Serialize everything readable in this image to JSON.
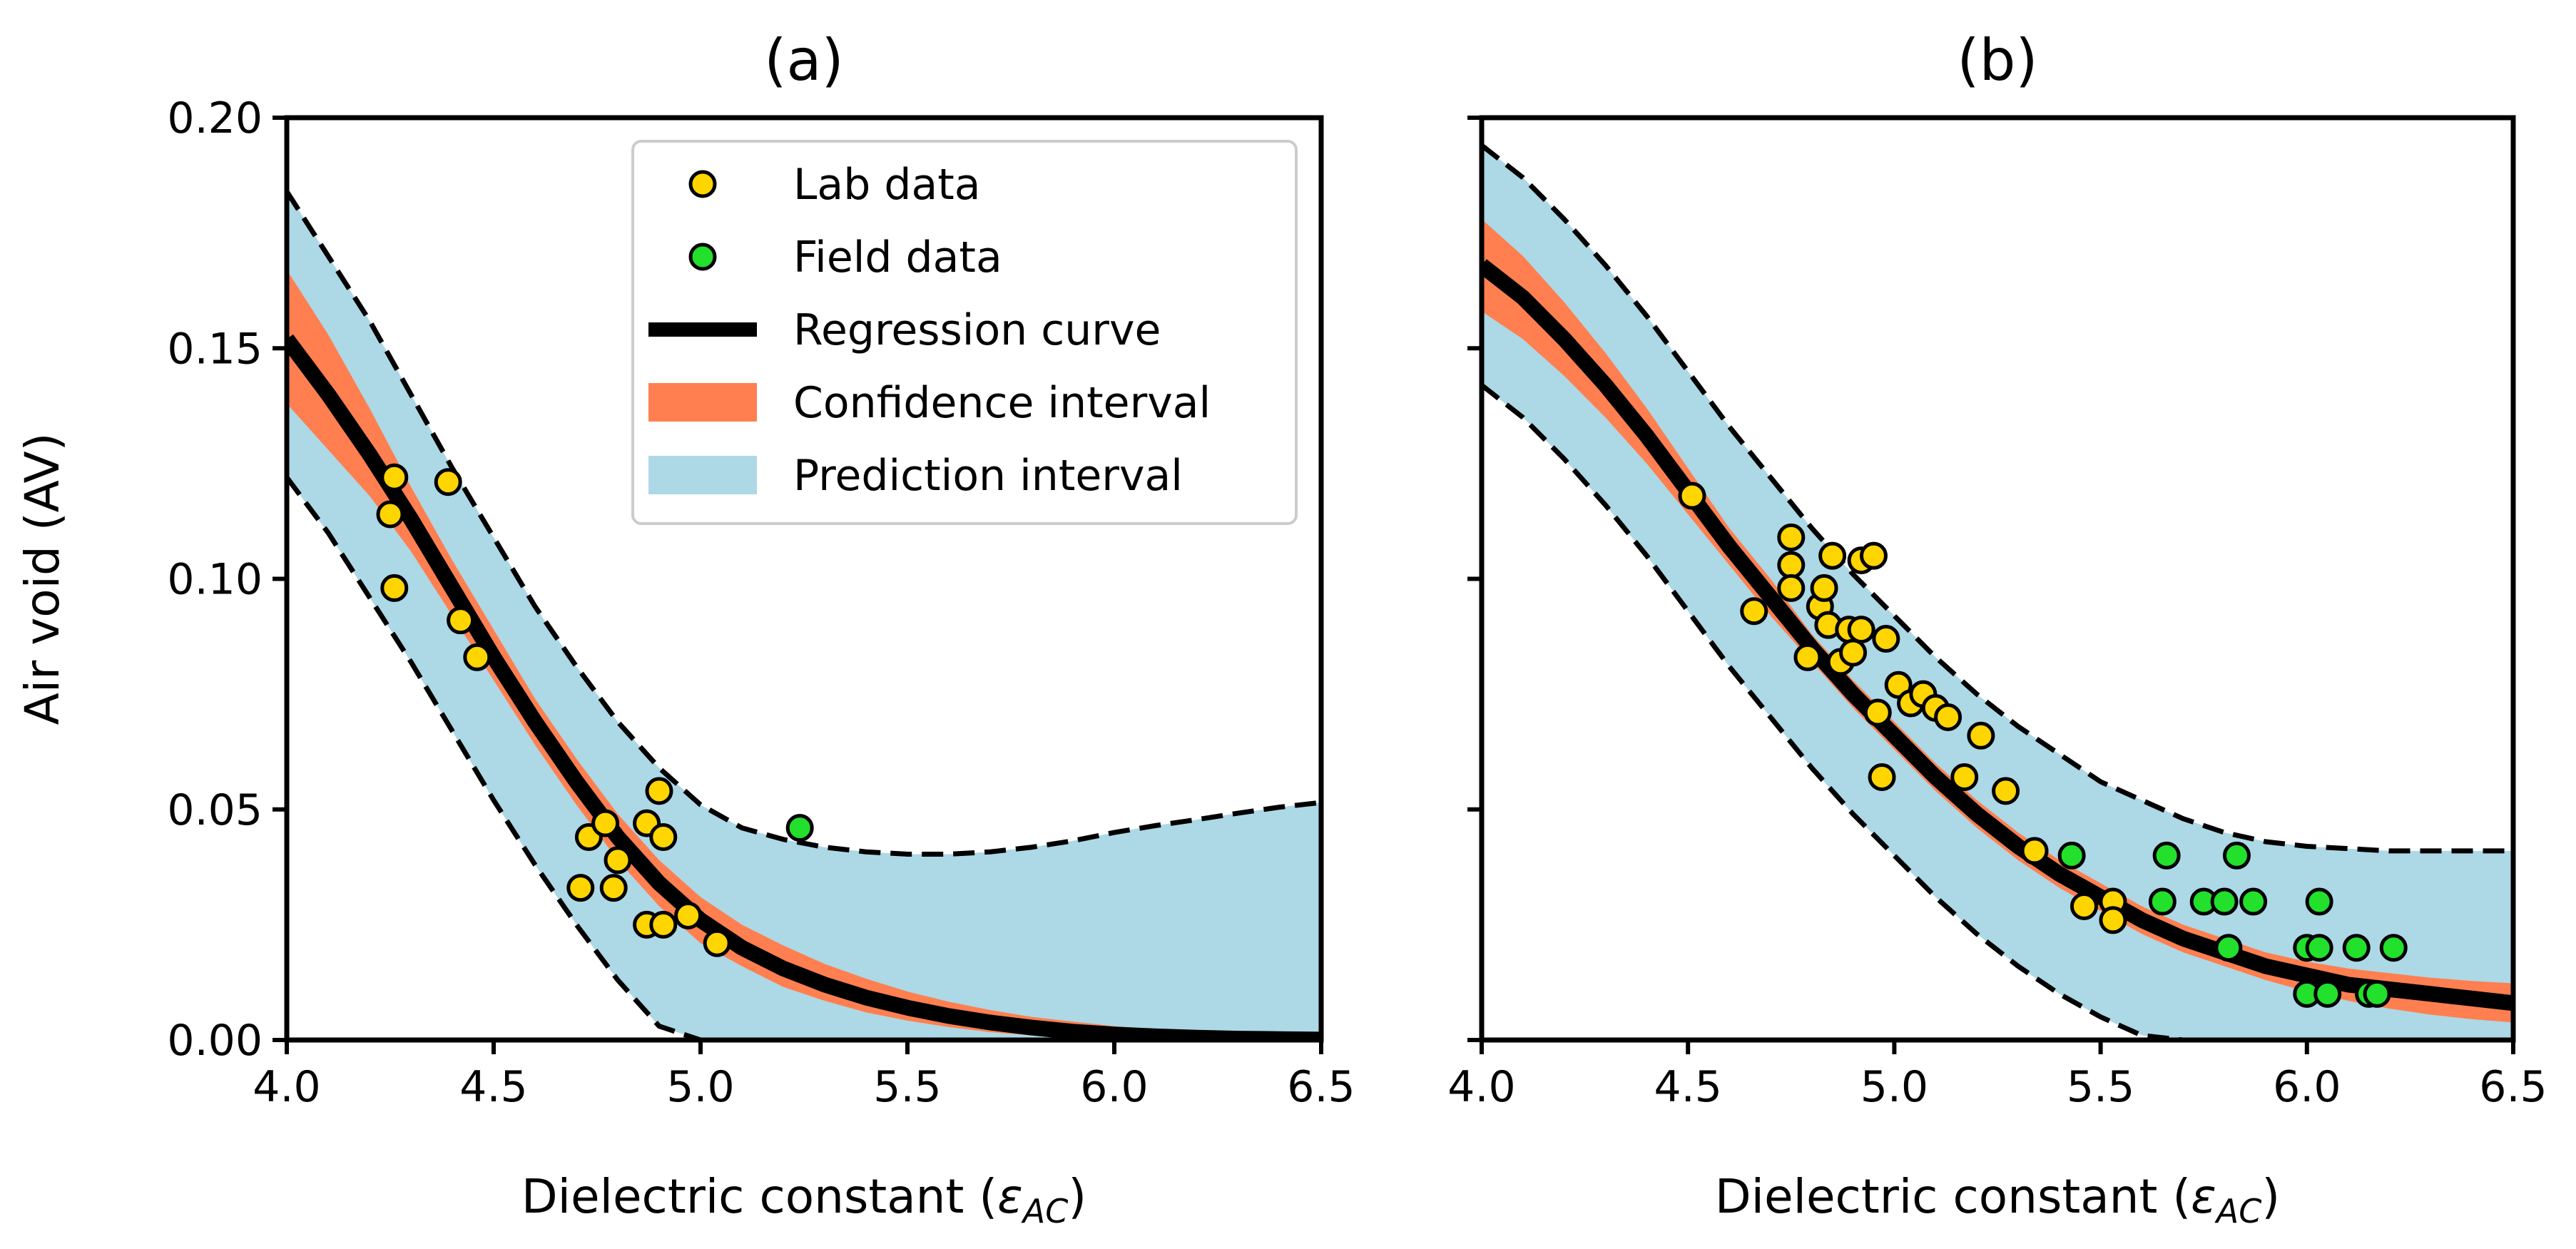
{
  "chart_data": [
    {
      "type": "scatter",
      "panel": "a",
      "title": "(a)",
      "xlabel": "Dielectric constant (",
      "xlabel_symbol": "ε",
      "xlabel_subscript": "AC",
      "xlabel_close": ")",
      "ylabel": "Air void (AV)",
      "xlim": [
        4.0,
        6.5
      ],
      "ylim": [
        0.0,
        0.2
      ],
      "xticks": [
        "4.0",
        "4.5",
        "5.0",
        "5.5",
        "6.0",
        "6.5"
      ],
      "yticks": [
        "0.00",
        "0.05",
        "0.10",
        "0.15",
        "0.20"
      ],
      "show_ytick_labels": true,
      "legend_position": "top-right",
      "series": [
        {
          "name": "Lab data",
          "kind": "points",
          "color": "#FFD500",
          "points": [
            [
              4.26,
              0.122
            ],
            [
              4.25,
              0.114
            ],
            [
              4.26,
              0.098
            ],
            [
              4.39,
              0.121
            ],
            [
              4.42,
              0.091
            ],
            [
              4.46,
              0.083
            ],
            [
              4.71,
              0.033
            ],
            [
              4.73,
              0.044
            ],
            [
              4.77,
              0.047
            ],
            [
              4.79,
              0.033
            ],
            [
              4.8,
              0.039
            ],
            [
              4.87,
              0.047
            ],
            [
              4.87,
              0.025
            ],
            [
              4.9,
              0.054
            ],
            [
              4.91,
              0.044
            ],
            [
              4.91,
              0.025
            ],
            [
              4.97,
              0.027
            ],
            [
              5.04,
              0.021
            ]
          ]
        },
        {
          "name": "Field data",
          "kind": "points",
          "color": "#22E02B",
          "points": [
            [
              5.24,
              0.046
            ]
          ]
        },
        {
          "name": "Regression curve",
          "kind": "line",
          "color": "#000000",
          "x": [
            4.0,
            4.1,
            4.2,
            4.3,
            4.4,
            4.5,
            4.6,
            4.7,
            4.8,
            4.9,
            5.0,
            5.1,
            5.2,
            5.3,
            5.4,
            5.5,
            5.6,
            5.7,
            5.8,
            5.9,
            6.0,
            6.1,
            6.2,
            6.3,
            6.4,
            6.5
          ],
          "y": [
            0.152,
            0.14,
            0.127,
            0.113,
            0.098,
            0.083,
            0.069,
            0.056,
            0.044,
            0.034,
            0.026,
            0.02,
            0.0155,
            0.012,
            0.0092,
            0.007,
            0.0052,
            0.0038,
            0.0027,
            0.0018,
            0.0012,
            0.0008,
            0.0005,
            0.0003,
            0.0002,
            0.0001
          ]
        },
        {
          "name": "Confidence interval",
          "kind": "band",
          "color": "#FF7F50",
          "x": [
            4.0,
            4.1,
            4.2,
            4.3,
            4.4,
            4.5,
            4.6,
            4.7,
            4.8,
            4.9,
            5.0,
            5.1,
            5.2,
            5.3,
            5.4,
            5.5,
            5.6,
            5.7,
            5.8,
            5.9,
            6.0,
            6.1,
            6.2,
            6.3,
            6.4,
            6.5
          ],
          "lower": [
            0.138,
            0.128,
            0.118,
            0.106,
            0.092,
            0.078,
            0.064,
            0.051,
            0.039,
            0.029,
            0.021,
            0.016,
            0.0115,
            0.0085,
            0.006,
            0.0042,
            0.0028,
            0.0017,
            0.001,
            0.0005,
            0.0002,
            0.0001,
            0.0,
            0.0,
            0.0,
            0.0
          ],
          "upper": [
            0.167,
            0.153,
            0.137,
            0.12,
            0.104,
            0.089,
            0.074,
            0.061,
            0.049,
            0.039,
            0.031,
            0.025,
            0.0205,
            0.0165,
            0.0133,
            0.0105,
            0.0083,
            0.0065,
            0.005,
            0.004,
            0.003,
            0.0023,
            0.0018,
            0.0014,
            0.0011,
            0.0009
          ]
        },
        {
          "name": "Prediction interval",
          "kind": "band",
          "color": "#ADD8E6",
          "x": [
            4.0,
            4.1,
            4.2,
            4.3,
            4.4,
            4.5,
            4.6,
            4.7,
            4.8,
            4.9,
            5.0,
            5.1,
            5.2,
            5.3,
            5.4,
            5.5,
            5.6,
            5.7,
            5.8,
            5.9,
            6.0,
            6.1,
            6.2,
            6.3,
            6.4,
            6.5
          ],
          "lower": [
            0.122,
            0.11,
            0.096,
            0.082,
            0.067,
            0.052,
            0.038,
            0.025,
            0.013,
            0.003,
            0.0,
            0.0,
            0.0,
            0.0,
            0.0,
            0.0,
            0.0,
            0.0,
            0.0,
            0.0,
            0.0,
            0.0,
            0.0,
            0.0,
            0.0,
            0.0
          ],
          "upper": [
            0.184,
            0.17,
            0.156,
            0.14,
            0.124,
            0.109,
            0.094,
            0.081,
            0.069,
            0.059,
            0.051,
            0.046,
            0.0435,
            0.0418,
            0.0408,
            0.0403,
            0.0403,
            0.0408,
            0.0418,
            0.0432,
            0.045,
            0.0465,
            0.0478,
            0.0492,
            0.0505,
            0.0515
          ]
        }
      ]
    },
    {
      "type": "scatter",
      "panel": "b",
      "title": "(b)",
      "xlabel": "Dielectric constant (",
      "xlabel_symbol": "ε",
      "xlabel_subscript": "AC",
      "xlabel_close": ")",
      "ylabel": "",
      "xlim": [
        4.0,
        6.5
      ],
      "ylim": [
        0.0,
        0.2
      ],
      "xticks": [
        "4.0",
        "4.5",
        "5.0",
        "5.5",
        "6.0",
        "6.5"
      ],
      "yticks": [
        "0.00",
        "0.05",
        "0.10",
        "0.15",
        "0.20"
      ],
      "show_ytick_labels": false,
      "legend_position": "none",
      "series": [
        {
          "name": "Lab data",
          "kind": "points",
          "color": "#FFD500",
          "points": [
            [
              4.51,
              0.118
            ],
            [
              4.66,
              0.093
            ],
            [
              4.75,
              0.109
            ],
            [
              4.75,
              0.103
            ],
            [
              4.75,
              0.098
            ],
            [
              4.79,
              0.083
            ],
            [
              4.82,
              0.094
            ],
            [
              4.83,
              0.098
            ],
            [
              4.84,
              0.09
            ],
            [
              4.85,
              0.105
            ],
            [
              4.87,
              0.082
            ],
            [
              4.89,
              0.089
            ],
            [
              4.9,
              0.084
            ],
            [
              4.92,
              0.104
            ],
            [
              4.92,
              0.089
            ],
            [
              4.95,
              0.105
            ],
            [
              4.96,
              0.071
            ],
            [
              4.97,
              0.057
            ],
            [
              4.98,
              0.087
            ],
            [
              5.01,
              0.077
            ],
            [
              5.04,
              0.073
            ],
            [
              5.07,
              0.075
            ],
            [
              5.1,
              0.072
            ],
            [
              5.13,
              0.07
            ],
            [
              5.17,
              0.057
            ],
            [
              5.21,
              0.066
            ],
            [
              5.27,
              0.054
            ],
            [
              5.34,
              0.041
            ],
            [
              5.46,
              0.029
            ],
            [
              5.53,
              0.03
            ],
            [
              5.53,
              0.026
            ]
          ]
        },
        {
          "name": "Field data",
          "kind": "points",
          "color": "#22E02B",
          "points": [
            [
              5.43,
              0.04
            ],
            [
              5.65,
              0.03
            ],
            [
              5.66,
              0.04
            ],
            [
              5.75,
              0.03
            ],
            [
              5.8,
              0.03
            ],
            [
              5.81,
              0.02
            ],
            [
              5.83,
              0.04
            ],
            [
              5.87,
              0.03
            ],
            [
              6.0,
              0.02
            ],
            [
              6.0,
              0.01
            ],
            [
              6.03,
              0.03
            ],
            [
              6.03,
              0.02
            ],
            [
              6.05,
              0.01
            ],
            [
              6.12,
              0.02
            ],
            [
              6.15,
              0.01
            ],
            [
              6.17,
              0.01
            ],
            [
              6.21,
              0.02
            ]
          ]
        },
        {
          "name": "Regression curve",
          "kind": "line",
          "color": "#000000",
          "x": [
            4.0,
            4.1,
            4.2,
            4.3,
            4.4,
            4.5,
            4.6,
            4.7,
            4.8,
            4.9,
            5.0,
            5.1,
            5.2,
            5.3,
            5.4,
            5.5,
            5.6,
            5.7,
            5.8,
            5.9,
            6.0,
            6.1,
            6.2,
            6.3,
            6.4,
            6.5
          ],
          "y": [
            0.168,
            0.161,
            0.152,
            0.142,
            0.131,
            0.119,
            0.107,
            0.096,
            0.085,
            0.075,
            0.066,
            0.057,
            0.049,
            0.042,
            0.036,
            0.031,
            0.026,
            0.022,
            0.019,
            0.016,
            0.014,
            0.012,
            0.011,
            0.01,
            0.009,
            0.008
          ]
        },
        {
          "name": "Confidence interval",
          "kind": "band",
          "color": "#FF7F50",
          "x": [
            4.0,
            4.1,
            4.2,
            4.3,
            4.4,
            4.5,
            4.6,
            4.7,
            4.8,
            4.9,
            5.0,
            5.1,
            5.2,
            5.3,
            5.4,
            5.5,
            5.6,
            5.7,
            5.8,
            5.9,
            6.0,
            6.1,
            6.2,
            6.3,
            6.4,
            6.5
          ],
          "lower": [
            0.158,
            0.152,
            0.144,
            0.135,
            0.125,
            0.114,
            0.103,
            0.092,
            0.082,
            0.072,
            0.063,
            0.054,
            0.046,
            0.039,
            0.033,
            0.028,
            0.023,
            0.019,
            0.016,
            0.013,
            0.0105,
            0.0085,
            0.0068,
            0.0055,
            0.0045,
            0.0038
          ],
          "upper": [
            0.178,
            0.17,
            0.16,
            0.149,
            0.137,
            0.124,
            0.111,
            0.1,
            0.088,
            0.078,
            0.069,
            0.06,
            0.052,
            0.045,
            0.039,
            0.034,
            0.029,
            0.025,
            0.022,
            0.019,
            0.017,
            0.0155,
            0.0145,
            0.0135,
            0.0128,
            0.0123
          ]
        },
        {
          "name": "Prediction interval",
          "kind": "band",
          "color": "#ADD8E6",
          "x": [
            4.0,
            4.1,
            4.2,
            4.3,
            4.4,
            4.5,
            4.6,
            4.7,
            4.8,
            4.9,
            5.0,
            5.1,
            5.2,
            5.3,
            5.4,
            5.5,
            5.6,
            5.7,
            5.8,
            5.9,
            6.0,
            6.1,
            6.2,
            6.3,
            6.4,
            6.5
          ],
          "lower": [
            0.142,
            0.135,
            0.126,
            0.116,
            0.105,
            0.093,
            0.081,
            0.07,
            0.059,
            0.049,
            0.04,
            0.031,
            0.023,
            0.016,
            0.01,
            0.005,
            0.001,
            0.0,
            0.0,
            0.0,
            0.0,
            0.0,
            0.0,
            0.0,
            0.0,
            0.0
          ],
          "upper": [
            0.194,
            0.187,
            0.178,
            0.168,
            0.157,
            0.145,
            0.133,
            0.122,
            0.111,
            0.101,
            0.092,
            0.083,
            0.075,
            0.068,
            0.062,
            0.056,
            0.052,
            0.048,
            0.045,
            0.043,
            0.042,
            0.0415,
            0.041,
            0.041,
            0.041,
            0.041
          ]
        }
      ]
    }
  ],
  "legend": {
    "items": [
      {
        "label": "Lab data",
        "kind": "marker",
        "color": "#FFD500"
      },
      {
        "label": "Field data",
        "kind": "marker",
        "color": "#22E02B"
      },
      {
        "label": "Regression curve",
        "kind": "line",
        "color": "#000000"
      },
      {
        "label": "Confidence interval",
        "kind": "patch",
        "color": "#FF7F50"
      },
      {
        "label": "Prediction interval",
        "kind": "patch",
        "color": "#ADD8E6"
      }
    ]
  },
  "colors": {
    "lab": "#FFD500",
    "field": "#22E02B",
    "regression": "#000000",
    "confidence": "#FF7F50",
    "prediction": "#ADD8E6"
  }
}
